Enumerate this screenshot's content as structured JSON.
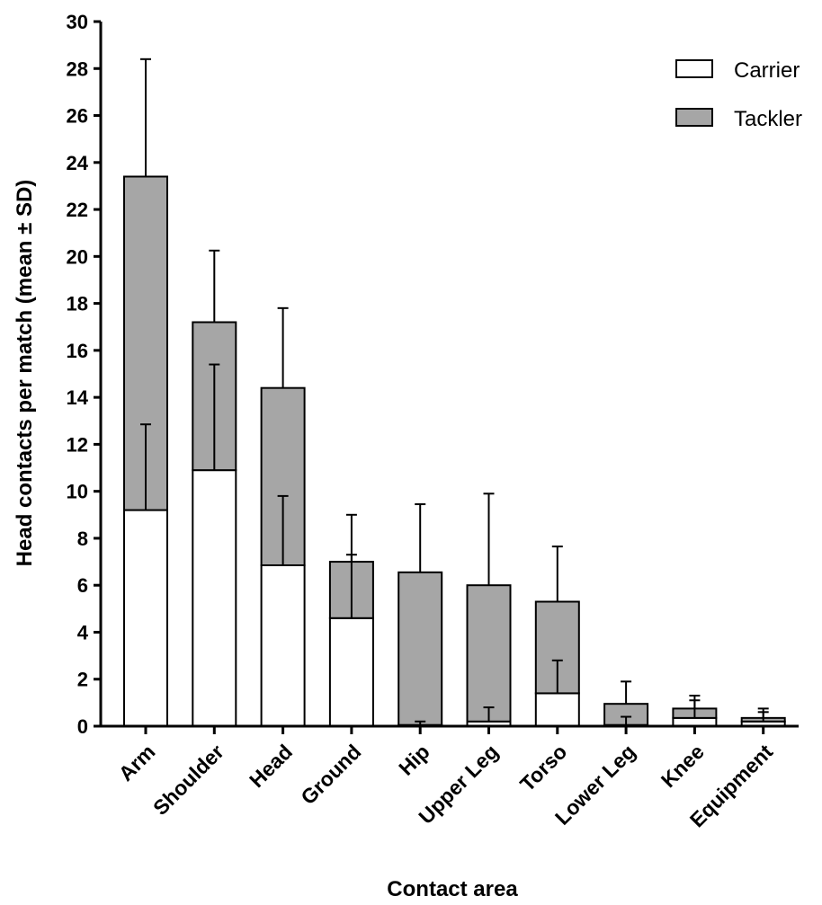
{
  "chart_data": {
    "type": "bar",
    "stacked": true,
    "xlabel": "Contact area",
    "ylabel": "Head contacts per match (mean ± SD)",
    "ylim": [
      0,
      30
    ],
    "yticks": [
      0,
      2,
      4,
      6,
      8,
      10,
      12,
      14,
      16,
      18,
      20,
      22,
      24,
      26,
      28,
      30
    ],
    "categories": [
      "Arm",
      "Shoulder",
      "Head",
      "Ground",
      "Hip",
      "Upper Leg",
      "Torso",
      "Lower Leg",
      "Knee",
      "Equipment"
    ],
    "series": [
      {
        "name": "Carrier",
        "color": "#ffffff",
        "values": [
          9.2,
          10.9,
          6.85,
          4.6,
          0.05,
          0.2,
          1.4,
          0.05,
          0.35,
          0.2
        ],
        "error_top": [
          12.85,
          15.4,
          9.8,
          7.3,
          0.2,
          0.8,
          2.8,
          0.4,
          1.1,
          0.6
        ]
      },
      {
        "name": "Tackler",
        "color": "#a6a6a6",
        "values": [
          14.2,
          6.3,
          7.55,
          2.4,
          6.5,
          5.8,
          3.9,
          0.9,
          0.4,
          0.15
        ],
        "error_top": [
          28.4,
          20.25,
          17.8,
          9.0,
          9.45,
          9.9,
          7.65,
          1.9,
          1.3,
          0.75
        ]
      }
    ],
    "legend_position": "top-right",
    "grid": false
  }
}
